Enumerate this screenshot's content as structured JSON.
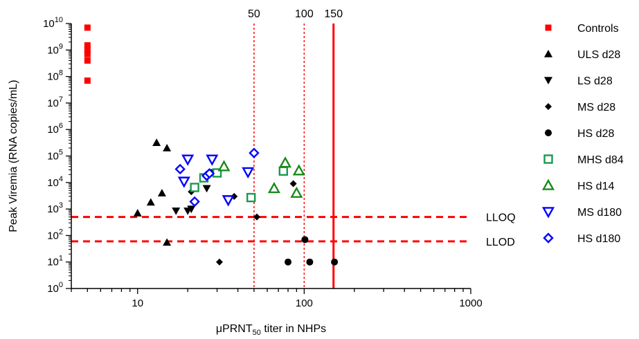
{
  "chart_data": {
    "type": "scatter",
    "title": "",
    "xlabel": {
      "pre": "μPRNT",
      "sub": "50",
      "post": " titer in NHPs"
    },
    "ylabel": "Peak Viremia (RNA copies/mL)",
    "x_scale": "log",
    "y_scale": "log",
    "xlim": [
      4,
      1000
    ],
    "ylim": [
      1,
      10000000000
    ],
    "x_ticks": [
      {
        "value": 10,
        "label": "10"
      },
      {
        "value": 100,
        "label": "100"
      },
      {
        "value": 1000,
        "label": "1000"
      }
    ],
    "y_ticks": [
      {
        "value": 1,
        "base": "10",
        "exp": "0"
      },
      {
        "value": 10,
        "base": "10",
        "exp": "1"
      },
      {
        "value": 100,
        "base": "10",
        "exp": "2"
      },
      {
        "value": 1000,
        "base": "10",
        "exp": "3"
      },
      {
        "value": 10000,
        "base": "10",
        "exp": "4"
      },
      {
        "value": 100000,
        "base": "10",
        "exp": "5"
      },
      {
        "value": 1000000,
        "base": "10",
        "exp": "6"
      },
      {
        "value": 10000000,
        "base": "10",
        "exp": "7"
      },
      {
        "value": 100000000,
        "base": "10",
        "exp": "8"
      },
      {
        "value": 1000000000,
        "base": "10",
        "exp": "9"
      },
      {
        "value": 10000000000,
        "base": "10",
        "exp": "10"
      }
    ],
    "grid": false,
    "legend_position": "right",
    "reference_lines": [
      {
        "orientation": "horizontal",
        "value": 500,
        "label": "LLOQ",
        "style": "dashed",
        "color": "#ff0000"
      },
      {
        "orientation": "horizontal",
        "value": 60,
        "label": "LLOD",
        "style": "dashed",
        "color": "#ff0000"
      },
      {
        "orientation": "vertical",
        "value": 50,
        "label": "50",
        "style": "dotted",
        "color": "#ff0000"
      },
      {
        "orientation": "vertical",
        "value": 100,
        "label": "100",
        "style": "dotted",
        "color": "#ff0000"
      },
      {
        "orientation": "vertical",
        "value": 150,
        "label": "150",
        "style": "solid",
        "color": "#ff0000"
      }
    ],
    "series": [
      {
        "name": "Controls",
        "marker": "square-filled",
        "color": "#ff0000",
        "points": [
          [
            5,
            7000000000
          ],
          [
            5,
            1500000000
          ],
          [
            5,
            1000000000
          ],
          [
            5,
            700000000
          ],
          [
            5,
            400000000
          ],
          [
            5,
            70000000
          ]
        ]
      },
      {
        "name": "ULS d28",
        "marker": "triangle-up-filled",
        "color": "#000000",
        "points": [
          [
            10,
            700
          ],
          [
            12,
            1800
          ],
          [
            13,
            320000
          ],
          [
            14,
            4000
          ],
          [
            15,
            200000
          ],
          [
            15,
            55
          ]
        ]
      },
      {
        "name": "LS d28",
        "marker": "triangle-down-filled",
        "color": "#000000",
        "points": [
          [
            17,
            850
          ],
          [
            20,
            850
          ],
          [
            21,
            1000
          ],
          [
            26,
            6000
          ],
          [
            28,
            24000
          ]
        ]
      },
      {
        "name": "MS d28",
        "marker": "diamond-filled",
        "color": "#000000",
        "points": [
          [
            21,
            4500
          ],
          [
            31,
            10
          ],
          [
            38,
            3000
          ],
          [
            52,
            500
          ],
          [
            86,
            9000
          ]
        ]
      },
      {
        "name": "HS d28",
        "marker": "circle-filled",
        "color": "#000000",
        "points": [
          [
            80,
            10
          ],
          [
            101,
            70
          ],
          [
            108,
            10
          ],
          [
            152,
            10
          ]
        ]
      },
      {
        "name": "MHS d84",
        "marker": "square-open",
        "color": "#1a9850",
        "points": [
          [
            22,
            6500
          ],
          [
            25,
            15000
          ],
          [
            30,
            23000
          ],
          [
            48,
            2700
          ],
          [
            75,
            27000
          ]
        ]
      },
      {
        "name": "HS d14",
        "marker": "triangle-up-open",
        "color": "#1a8a1a",
        "points": [
          [
            33,
            40000
          ],
          [
            66,
            6000
          ],
          [
            77,
            55000
          ],
          [
            90,
            4000
          ],
          [
            93,
            28000
          ]
        ]
      },
      {
        "name": "MS d180",
        "marker": "triangle-down-open",
        "color": "#0000ff",
        "points": [
          [
            19,
            11000
          ],
          [
            20,
            75000
          ],
          [
            28,
            75000
          ],
          [
            35,
            2200
          ],
          [
            46,
            25000
          ]
        ]
      },
      {
        "name": "HS d180",
        "marker": "diamond-open",
        "color": "#0000ff",
        "points": [
          [
            18,
            32000
          ],
          [
            22,
            1900
          ],
          [
            26,
            18000
          ],
          [
            27,
            22000
          ],
          [
            50,
            130000
          ]
        ]
      }
    ]
  }
}
